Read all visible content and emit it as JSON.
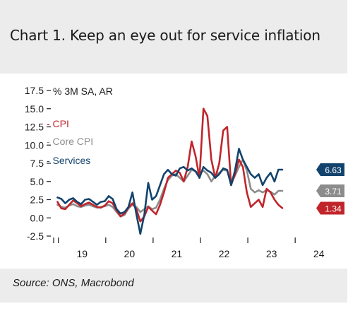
{
  "header": {
    "title": "Chart 1. Keep an eye out for service inflation"
  },
  "footer": {
    "source": "Source: ONS, Macrobond"
  },
  "chart_data": {
    "type": "line",
    "title": "Chart 1. Keep an eye out for service inflation",
    "ylabel": "% 3M SA, AR",
    "ylim": [
      -2.5,
      17.5
    ],
    "yticks": [
      "17.5",
      "15.0",
      "12.5",
      "10.0",
      "7.5",
      "5.0",
      "2.5",
      "0.0",
      "-2.5"
    ],
    "yticks_values": [
      17.5,
      15.0,
      12.5,
      10.0,
      7.5,
      5.0,
      2.5,
      0.0,
      -2.5
    ],
    "xticks": [
      "19",
      "20",
      "21",
      "22",
      "23",
      "24"
    ],
    "x_start": 2018.9,
    "x_end": 2024.4,
    "x_step": 0.08333,
    "grid": false,
    "legend_placement": "upper-left",
    "series": [
      {
        "name": "CPI",
        "color": "#c0252b",
        "end_label": "1.34",
        "values": [
          2.2,
          1.3,
          1.2,
          1.8,
          2.4,
          2.0,
          1.6,
          1.9,
          2.1,
          1.8,
          1.5,
          1.4,
          1.7,
          2.3,
          2.0,
          1.0,
          0.2,
          0.6,
          1.4,
          2.0,
          1.2,
          -0.5,
          0.2,
          1.5,
          1.0,
          0.5,
          1.8,
          3.5,
          5.5,
          6.0,
          6.5,
          6.2,
          5.0,
          7.0,
          10.5,
          8.5,
          5.5,
          15.0,
          14.0,
          8.0,
          5.5,
          7.5,
          12.0,
          12.5,
          4.5,
          6.0,
          8.0,
          7.0,
          3.5,
          1.5,
          2.0,
          2.5,
          1.5,
          4.0,
          3.5,
          2.5,
          1.8,
          1.34
        ]
      },
      {
        "name": "Core CPI",
        "color": "#8c8c8c",
        "end_label": "3.71",
        "values": [
          1.8,
          1.5,
          1.4,
          1.7,
          1.9,
          1.6,
          1.5,
          1.7,
          1.8,
          1.6,
          1.4,
          1.5,
          1.6,
          1.8,
          1.5,
          0.8,
          0.2,
          0.4,
          1.3,
          1.8,
          1.5,
          0.8,
          1.2,
          1.6,
          1.2,
          1.4,
          2.5,
          4.0,
          5.2,
          5.8,
          6.0,
          5.5,
          5.0,
          5.8,
          6.6,
          6.4,
          6.0,
          6.5,
          6.0,
          5.0,
          5.8,
          6.2,
          6.6,
          6.5,
          4.8,
          5.8,
          7.0,
          8.0,
          6.5,
          4.0,
          3.5,
          3.8,
          3.5,
          3.8,
          3.6,
          3.2,
          3.7,
          3.71
        ]
      },
      {
        "name": "Services",
        "color": "#12436d",
        "end_label": "6.63",
        "values": [
          2.8,
          2.6,
          2.0,
          2.5,
          2.7,
          2.2,
          1.9,
          2.5,
          2.6,
          2.2,
          1.8,
          2.2,
          2.3,
          3.0,
          2.6,
          1.2,
          0.6,
          0.8,
          1.5,
          3.5,
          0.5,
          -2.2,
          0.4,
          4.8,
          2.5,
          3.0,
          4.5,
          6.0,
          6.6,
          6.0,
          5.8,
          6.8,
          7.0,
          6.5,
          6.8,
          6.4,
          5.5,
          7.0,
          6.5,
          6.2,
          5.5,
          6.0,
          6.8,
          6.6,
          4.5,
          6.5,
          9.5,
          8.0,
          7.0,
          6.0,
          5.5,
          6.0,
          4.5,
          5.5,
          6.2,
          5.0,
          6.63,
          6.63
        ]
      }
    ]
  }
}
